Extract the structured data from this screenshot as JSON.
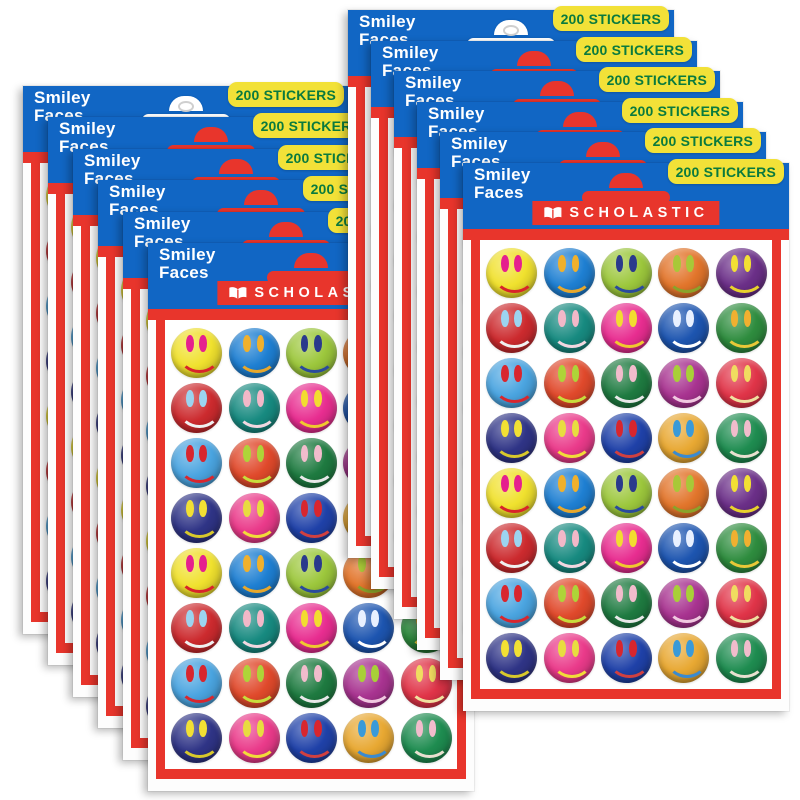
{
  "product": {
    "title_line1": "Smiley",
    "title_line2": "Faces",
    "count_badge": "200 STICKERS",
    "brand": "SCHOLASTIC",
    "packages_visible": 12,
    "packages_per_fan": 6,
    "sticker_grid": {
      "rows": 8,
      "cols": 5
    }
  },
  "colors": {
    "header_blue": "#1166C4",
    "brand_red": "#E8352C",
    "badge_yellow": "#F2E138",
    "badge_text_green": "#0A7A3E",
    "title_white": "#FFFFFF"
  },
  "sticker_rows": [
    [
      {
        "face": "#F0E12E",
        "eyes": "#E5208E",
        "smile": "#D8232A"
      },
      {
        "face": "#1E7FD2",
        "eyes": "#F0B02C",
        "smile": "#E8A82C"
      },
      {
        "face": "#9CC73C",
        "eyes": "#2A3A8C",
        "smile": "#2A4A9C"
      },
      {
        "face": "#E2752B",
        "eyes": "#A8C838",
        "smile": "#8AA32A"
      },
      {
        "face": "#6B2F88",
        "eyes": "#F2E034",
        "smile": "#E8D22C"
      }
    ],
    [
      {
        "face": "#CC2A2E",
        "eyes": "#9CD4F0",
        "smile": "#F0F0F0"
      },
      {
        "face": "#178A80",
        "eyes": "#F2B8C8",
        "smile": "#F0D8E0"
      },
      {
        "face": "#E82D90",
        "eyes": "#F2DC30",
        "smile": "#F0C830"
      },
      {
        "face": "#1D55B0",
        "eyes": "#E8F0FF",
        "smile": "#FFFFFF"
      },
      {
        "face": "#2E8C3E",
        "eyes": "#F0B030",
        "smile": "#E8C838"
      }
    ],
    [
      {
        "face": "#4AA4E0",
        "eyes": "#D8262E",
        "smile": "#D8262E"
      },
      {
        "face": "#E0492B",
        "eyes": "#AED438",
        "smile": "#C8DC3C"
      },
      {
        "face": "#1E7A40",
        "eyes": "#F2BCCC",
        "smile": "#E8E8E8"
      },
      {
        "face": "#A83390",
        "eyes": "#A8D038",
        "smile": "#F0C8E0"
      },
      {
        "face": "#E03448",
        "eyes": "#F0DC60",
        "smile": "#F0E0A0"
      }
    ],
    [
      {
        "face": "#2F3486",
        "eyes": "#F2E034",
        "smile": "#D8C82C"
      },
      {
        "face": "#EA3A8A",
        "eyes": "#E8DC40",
        "smile": "#F2DC3A"
      },
      {
        "face": "#1F41A8",
        "eyes": "#D8262E",
        "smile": "#D04040"
      },
      {
        "face": "#E8A832",
        "eyes": "#3A9AD8",
        "smile": "#3A8AD0"
      },
      {
        "face": "#1E8C50",
        "eyes": "#F2BCCC",
        "smile": "#E8E0D0"
      }
    ]
  ],
  "row_sequence": [
    0,
    1,
    2,
    3,
    0,
    1,
    2,
    3
  ]
}
